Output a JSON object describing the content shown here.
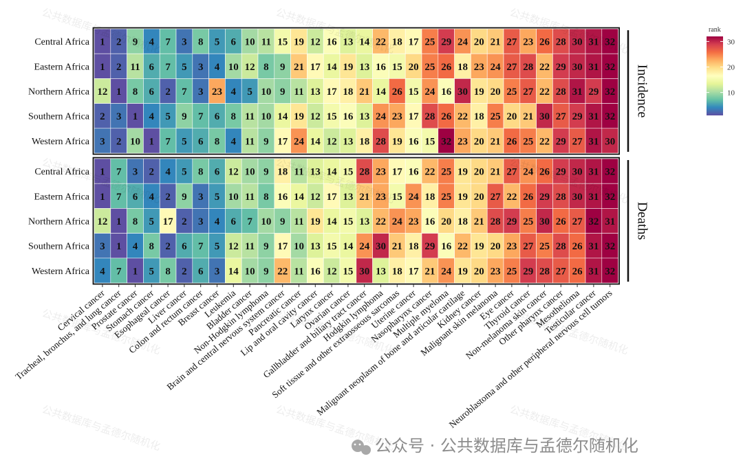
{
  "chart_data": {
    "type": "heatmap",
    "color_scale": {
      "title": "rank",
      "ticks": [
        10,
        20,
        30
      ],
      "domain": [
        1,
        32
      ],
      "palette": "Spectral (reversed): blue = low rank, red = high rank",
      "colors": [
        "#5e4fa2",
        "#3288bd",
        "#66c2a5",
        "#abdda4",
        "#e6f598",
        "#ffffbf",
        "#fee08b",
        "#fdae61",
        "#f46d43",
        "#d53e4f",
        "#9e0142"
      ]
    },
    "x_categories": [
      "Cervical cancer",
      "Tracheal, bronchus, and lung cancer",
      "Prostate cancer",
      "Stomach cancer",
      "Esophageal cancer",
      "Liver cancer",
      "Colon and rectum cancer",
      "Breast cancer",
      "Leukemia",
      "Bladder cancer",
      "Non-Hodgkin lymphoma",
      "Brain and central nervous system cancer",
      "Pancreatic cancer",
      "Lip and oral cavity cancer",
      "Larynx cancer",
      "Ovarian cancer",
      "Gallbladder and biliary tract cancer",
      "Hodgkin lymphoma",
      "Soft tissue and other extraosseous sarcomas",
      "Uterine cancer",
      "Nasopharynx cancer",
      "Multiple myeloma",
      "Malignant neoplasm of bone and articular cartilage",
      "Kidney cancer",
      "Malignant skin melanoma",
      "Eye cancer",
      "Thyroid cancer",
      "Non-melanoma skin cancer",
      "Other pharynx cancer",
      "Mesothelioma",
      "Testicular cancer",
      "Neuroblastoma and other peripheral nervous cell tumors"
    ],
    "panels": [
      {
        "name": "Incidence",
        "rows": [
          "Central Africa",
          "Eastern Africa",
          "Northern Africa",
          "Southern Africa",
          "Western Africa"
        ],
        "values": [
          [
            1,
            2,
            9,
            4,
            7,
            3,
            8,
            5,
            6,
            10,
            11,
            15,
            19,
            12,
            16,
            13,
            14,
            22,
            18,
            17,
            25,
            29,
            24,
            20,
            21,
            27,
            23,
            26,
            28,
            30,
            31,
            32
          ],
          [
            1,
            2,
            11,
            6,
            7,
            5,
            3,
            4,
            10,
            12,
            8,
            9,
            21,
            17,
            14,
            19,
            13,
            16,
            15,
            20,
            25,
            26,
            18,
            23,
            24,
            27,
            28,
            22,
            29,
            30,
            31,
            32
          ],
          [
            12,
            1,
            8,
            6,
            2,
            7,
            3,
            23,
            4,
            5,
            10,
            9,
            11,
            13,
            17,
            18,
            21,
            14,
            26,
            15,
            24,
            16,
            30,
            19,
            20,
            25,
            27,
            22,
            28,
            31,
            29,
            32
          ],
          [
            2,
            3,
            1,
            4,
            5,
            9,
            7,
            6,
            8,
            11,
            10,
            14,
            19,
            12,
            15,
            16,
            13,
            24,
            23,
            17,
            28,
            26,
            22,
            18,
            25,
            20,
            21,
            30,
            27,
            29,
            31,
            32
          ],
          [
            3,
            2,
            10,
            1,
            7,
            5,
            6,
            8,
            4,
            11,
            9,
            17,
            24,
            14,
            12,
            13,
            18,
            28,
            19,
            16,
            15,
            32,
            23,
            20,
            21,
            26,
            25,
            22,
            29,
            27,
            31,
            30
          ]
        ]
      },
      {
        "name": "Deaths",
        "rows": [
          "Central Africa",
          "Eastern Africa",
          "Northern Africa",
          "Southern Africa",
          "Western Africa"
        ],
        "values": [
          [
            1,
            7,
            3,
            2,
            4,
            5,
            8,
            6,
            12,
            10,
            9,
            18,
            11,
            13,
            14,
            15,
            28,
            23,
            17,
            16,
            22,
            25,
            19,
            20,
            21,
            27,
            24,
            26,
            29,
            30,
            31,
            32
          ],
          [
            1,
            7,
            6,
            4,
            2,
            9,
            3,
            5,
            10,
            11,
            8,
            16,
            14,
            12,
            17,
            13,
            21,
            23,
            15,
            24,
            18,
            25,
            19,
            20,
            27,
            22,
            26,
            29,
            28,
            30,
            31,
            32
          ],
          [
            12,
            1,
            8,
            5,
            17,
            2,
            3,
            4,
            6,
            7,
            10,
            9,
            11,
            19,
            14,
            15,
            13,
            22,
            24,
            23,
            16,
            20,
            18,
            21,
            28,
            29,
            25,
            30,
            26,
            27,
            32,
            31
          ],
          [
            3,
            1,
            4,
            8,
            2,
            6,
            7,
            5,
            12,
            11,
            9,
            17,
            10,
            13,
            15,
            14,
            24,
            30,
            21,
            18,
            29,
            16,
            22,
            19,
            20,
            23,
            27,
            25,
            28,
            26,
            31,
            32
          ],
          [
            4,
            7,
            1,
            5,
            8,
            2,
            6,
            3,
            14,
            10,
            9,
            22,
            11,
            16,
            12,
            15,
            30,
            13,
            18,
            17,
            21,
            24,
            19,
            20,
            23,
            25,
            29,
            28,
            27,
            26,
            31,
            32
          ]
        ]
      }
    ]
  },
  "watermark": {
    "text": "公共数据库与孟德尔随机化",
    "footer": "公众号 · 公共数据库与孟德尔随机化"
  }
}
